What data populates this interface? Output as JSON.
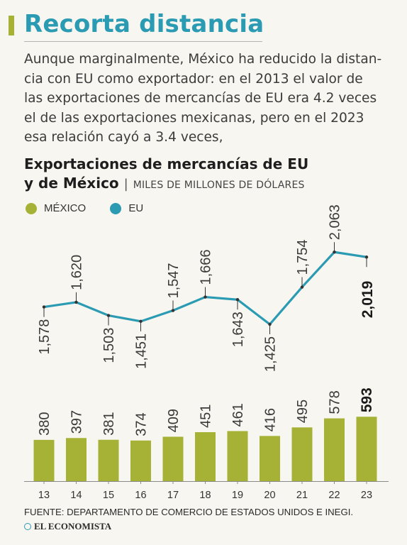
{
  "title": "Recorta distancia",
  "intro_lines": [
    "Aunque marginalmente, México ha reducido la distan-",
    "cia con EU como exportador: en el 2013 el valor de",
    "las exportaciones de mercancías de EU era 4.2 veces",
    "el de las exportaciones mexicanas, pero en el 2023",
    "esa relación cayó a 3.4 veces,"
  ],
  "chart_title_line1": "Exportaciones de mercancías de EU",
  "chart_title_line2": "y de México",
  "separator": "|",
  "units": "MILES DE MILLONES DE DÓLARES",
  "source": "FUENTE: DEPARTAMENTO DE COMERCIO DE ESTADOS UNIDOS E INEGI.",
  "brand": "EL ECONOMISTA",
  "colors": {
    "mexico": "#a6b236",
    "eu": "#2a9bb3",
    "title": "#2a9bb3"
  },
  "chart_data": {
    "type": "bar",
    "categories": [
      "13",
      "14",
      "15",
      "16",
      "17",
      "18",
      "19",
      "20",
      "21",
      "22",
      "23"
    ],
    "series": [
      {
        "name": "MÉXICO",
        "type": "bar",
        "values": [
          380,
          397,
          381,
          374,
          409,
          451,
          461,
          416,
          495,
          578,
          593
        ],
        "labels": [
          "380",
          "397",
          "381",
          "374",
          "409",
          "451",
          "461",
          "416",
          "495",
          "578",
          "593"
        ]
      },
      {
        "name": "EU",
        "type": "line",
        "values": [
          1578,
          1620,
          1503,
          1451,
          1547,
          1666,
          1643,
          1425,
          1754,
          2063,
          2019
        ],
        "labels": [
          "1,578",
          "1,620",
          "1,503",
          "1,451",
          "1,547",
          "1,666",
          "1,643",
          "1,425",
          "1,754",
          "2,063",
          "2,019"
        ]
      }
    ],
    "legend_position": "top-left",
    "grid": false
  }
}
